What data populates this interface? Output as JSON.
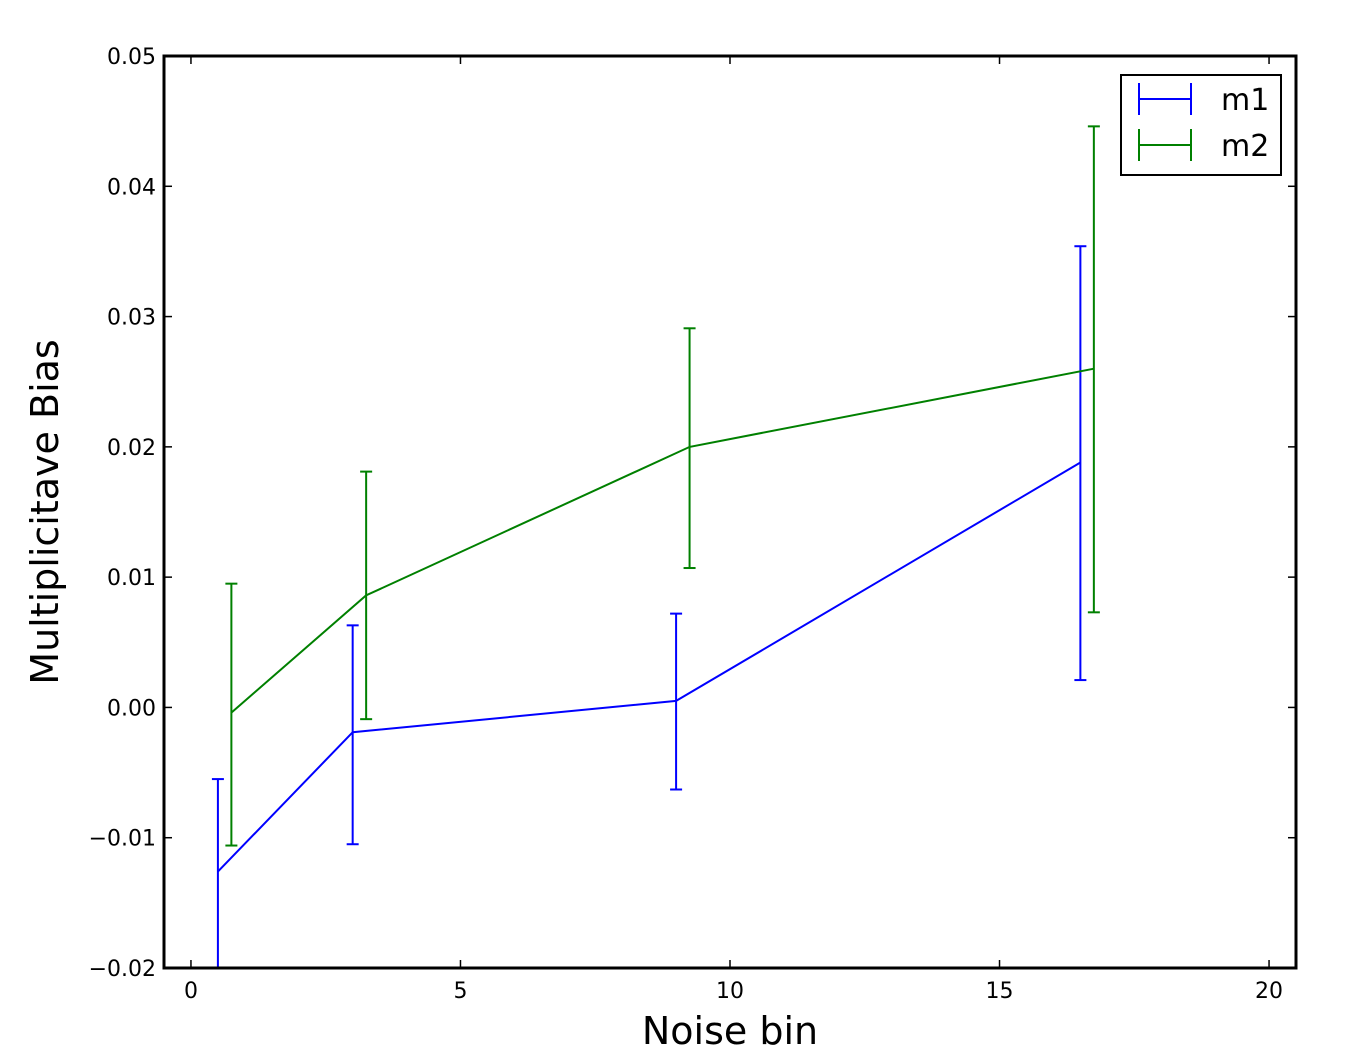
{
  "chart_data": {
    "type": "line",
    "title": "",
    "xlabel": "Noise bin",
    "ylabel": "Multiplicitave Bias",
    "xlim": [
      -0.5,
      20.5
    ],
    "ylim": [
      -0.02,
      0.05
    ],
    "xticks": [
      0,
      5,
      10,
      15,
      20
    ],
    "xtick_labels": [
      "0",
      "5",
      "10",
      "15",
      "20"
    ],
    "yticks": [
      -0.02,
      -0.01,
      0.0,
      0.01,
      0.02,
      0.03,
      0.04,
      0.05
    ],
    "ytick_labels": [
      "−0.02",
      "−0.01",
      "0.00",
      "0.01",
      "0.02",
      "0.03",
      "0.04",
      "0.05"
    ],
    "grid": false,
    "legend_position": "top-right",
    "error_bars": true,
    "series": [
      {
        "name": "m1",
        "color": "#0000ff",
        "x": [
          0.5,
          3.0,
          9.0,
          16.5
        ],
        "y": [
          -0.0126,
          -0.0019,
          0.0005,
          0.0188
        ],
        "yerr_low": [
          -0.0207,
          -0.0105,
          -0.0063,
          0.0021
        ],
        "yerr_high": [
          -0.0055,
          0.0063,
          0.0072,
          0.0354
        ]
      },
      {
        "name": "m2",
        "color": "#008000",
        "x": [
          0.75,
          3.25,
          9.25,
          16.75
        ],
        "y": [
          -0.0004,
          0.0086,
          0.02,
          0.026
        ],
        "yerr_low": [
          -0.0106,
          -0.0009,
          0.0107,
          0.0073
        ],
        "yerr_high": [
          0.0095,
          0.0181,
          0.0291,
          0.0446
        ]
      }
    ]
  }
}
